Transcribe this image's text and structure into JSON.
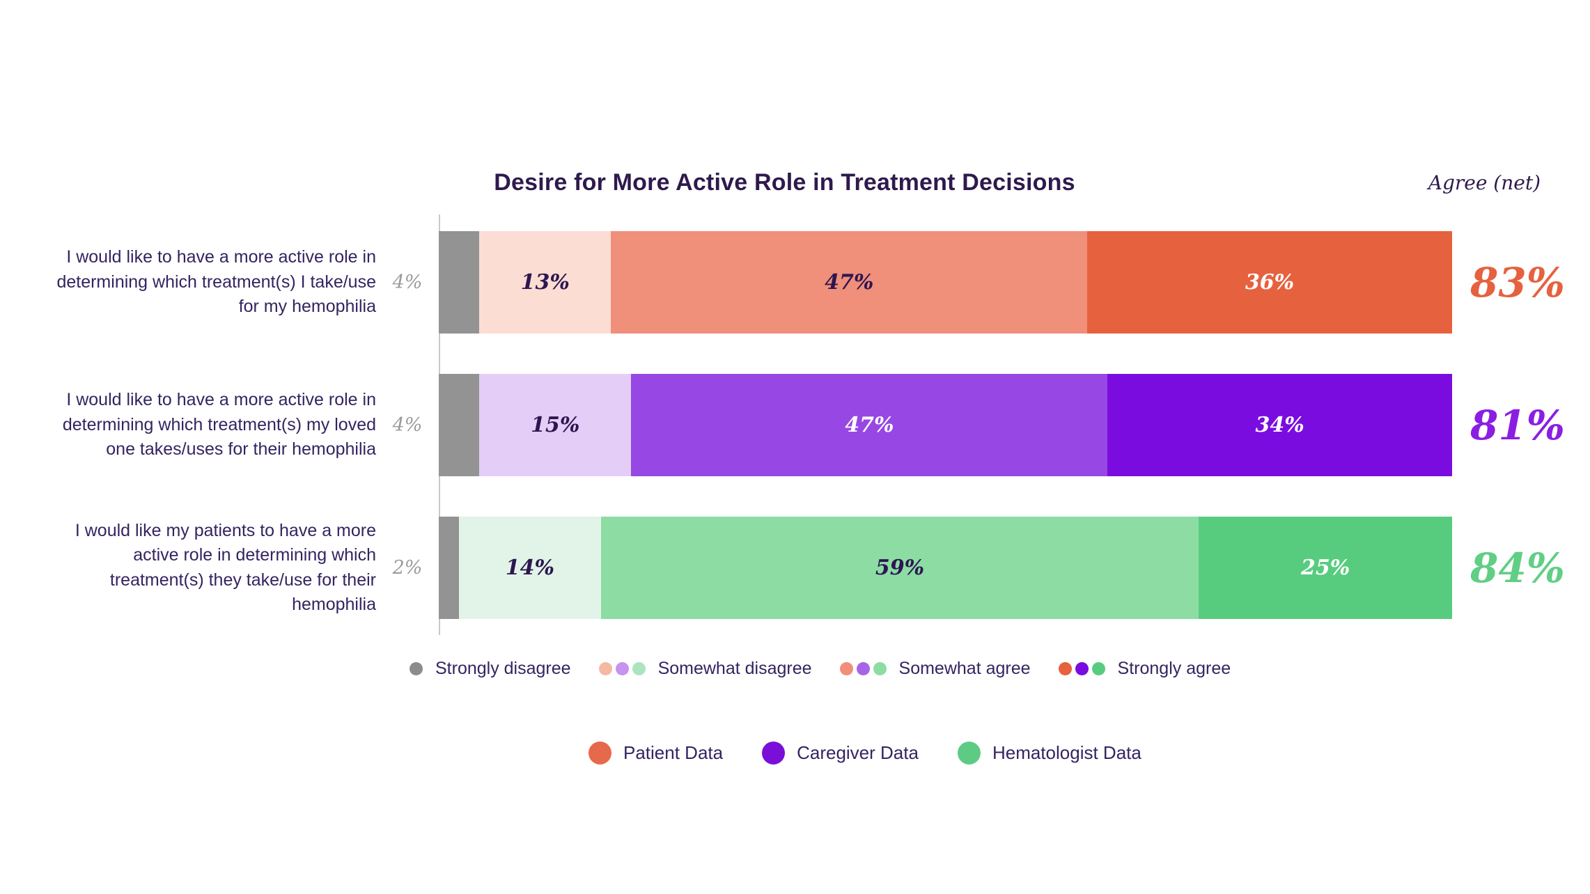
{
  "chart_data": {
    "type": "bar",
    "orientation": "horizontal-stacked",
    "title": "Desire for More Active Role in Treatment Decisions",
    "agree_net_label": "Agree (net)",
    "xlim": [
      0,
      100
    ],
    "grid": false,
    "categories_scale": [
      "Strongly disagree",
      "Somewhat disagree",
      "Somewhat agree",
      "Strongly agree"
    ],
    "rows": [
      {
        "statement": "I would like to have a more active role in determining which treatment(s) I take/use for my hemophilia",
        "group": "Patient Data",
        "outside_value": "4%",
        "net": "83%",
        "net_color": "#e6613e",
        "segments": [
          {
            "name": "strongly-disagree",
            "value": 4,
            "label": "",
            "color": "#939393",
            "label_color": ""
          },
          {
            "name": "somewhat-disagree",
            "value": 13,
            "label": "13%",
            "color": "#fbddd3",
            "label_color": "#2d1650"
          },
          {
            "name": "somewhat-agree",
            "value": 47,
            "label": "47%",
            "color": "#f08f7a",
            "label_color": "#2d1650"
          },
          {
            "name": "strongly-agree",
            "value": 36,
            "label": "36%",
            "color": "#e6613e",
            "label_color": "#ffffff"
          }
        ]
      },
      {
        "statement": "I would like to have a more active role in determining which treatment(s) my loved one takes/uses for their hemophilia",
        "group": "Caregiver Data",
        "outside_value": "4%",
        "net": "81%",
        "net_color": "#8a1ee2",
        "segments": [
          {
            "name": "strongly-disagree",
            "value": 4,
            "label": "",
            "color": "#939393",
            "label_color": ""
          },
          {
            "name": "somewhat-disagree",
            "value": 15,
            "label": "15%",
            "color": "#e4cdf6",
            "label_color": "#2d1650"
          },
          {
            "name": "somewhat-agree",
            "value": 47,
            "label": "47%",
            "color": "#9747e3",
            "label_color": "#ffffff"
          },
          {
            "name": "strongly-agree",
            "value": 34,
            "label": "34%",
            "color": "#7a0ce0",
            "label_color": "#ffffff"
          }
        ]
      },
      {
        "statement": "I would like my patients to have a more active role in determining which treatment(s) they take/use for their hemophilia",
        "group": "Hematologist Data",
        "outside_value": "2%",
        "net": "84%",
        "net_color": "#61ce85",
        "segments": [
          {
            "name": "strongly-disagree",
            "value": 2,
            "label": "",
            "color": "#939393",
            "label_color": ""
          },
          {
            "name": "somewhat-disagree",
            "value": 14,
            "label": "14%",
            "color": "#e1f4e7",
            "label_color": "#2d1650"
          },
          {
            "name": "somewhat-agree",
            "value": 59,
            "label": "59%",
            "color": "#8cdca4",
            "label_color": "#2d1650"
          },
          {
            "name": "strongly-agree",
            "value": 25,
            "label": "25%",
            "color": "#58cc7e",
            "label_color": "#ffffff"
          }
        ]
      }
    ],
    "scale_legend": [
      {
        "label": "Strongly disagree",
        "dots": [
          "#8c8c8c"
        ]
      },
      {
        "label": "Somewhat disagree",
        "dots": [
          "#f5b9a3",
          "#c693ef",
          "#abe4bf"
        ]
      },
      {
        "label": "Somewhat agree",
        "dots": [
          "#f08f7a",
          "#a764e8",
          "#8cdca4"
        ]
      },
      {
        "label": "Strongly agree",
        "dots": [
          "#e6613e",
          "#7a0ce0",
          "#58cc7e"
        ]
      }
    ],
    "group_legend": [
      {
        "label": "Patient Data",
        "color": "#e7694b"
      },
      {
        "label": "Caregiver Data",
        "color": "#7a0fd8"
      },
      {
        "label": "Hematologist Data",
        "color": "#5ecb85"
      }
    ],
    "colors": {
      "title_text": "#2e1a4d",
      "statement_text": "#342460",
      "outside_value_text": "#9b9b9b",
      "axis_line": "#c9c9c9",
      "background": "#ffffff"
    }
  }
}
